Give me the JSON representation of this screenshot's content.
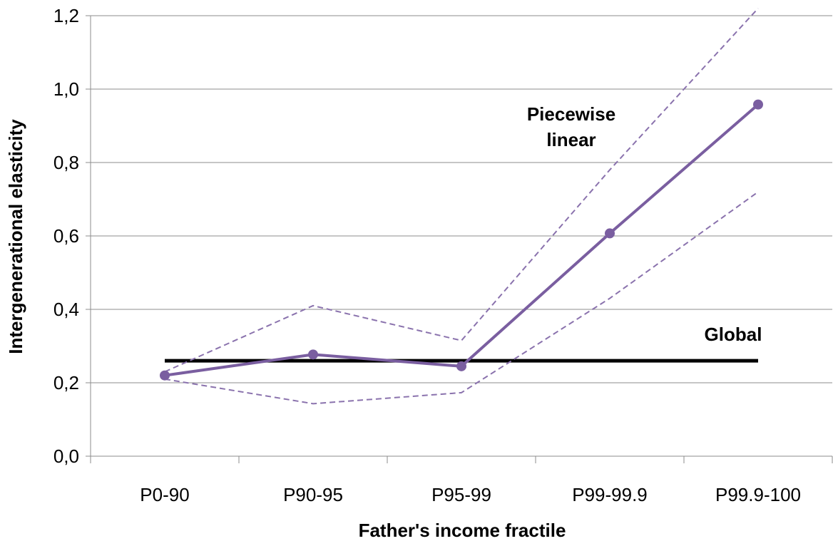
{
  "chart_data": {
    "type": "line",
    "title": "",
    "xlabel": "Father's income fractile",
    "ylabel": "Intergenerational elasticity",
    "categories": [
      "P0-90",
      "P90-95",
      "P95-99",
      "P99-99.9",
      "P99.9-100"
    ],
    "ylim": [
      0,
      1.2
    ],
    "yticks": [
      "0,0",
      "0,2",
      "0,4",
      "0,6",
      "0,8",
      "1,0",
      "1,2"
    ],
    "yticks_values": [
      0,
      0.2,
      0.4,
      0.6,
      0.8,
      1.0,
      1.2
    ],
    "grid": true,
    "series": [
      {
        "key": "piecewise",
        "values": [
          0.22,
          0.277,
          0.245,
          0.607,
          0.958
        ],
        "color": "#7a5ea0",
        "style": "solid-markers"
      },
      {
        "key": "upper",
        "values": [
          0.23,
          0.41,
          0.315,
          0.78,
          1.22
        ],
        "color": "#8a72ad",
        "style": "dashed"
      },
      {
        "key": "lower",
        "values": [
          0.21,
          0.143,
          0.173,
          0.43,
          0.72
        ],
        "color": "#8a72ad",
        "style": "dashed"
      },
      {
        "key": "global",
        "values": [
          0.26,
          0.26,
          0.26,
          0.26,
          0.26
        ],
        "color": "#000000",
        "style": "thick"
      }
    ],
    "annotations": {
      "piecewise_line1": "Piecewise",
      "piecewise_line2": "linear",
      "global": "Global"
    }
  }
}
